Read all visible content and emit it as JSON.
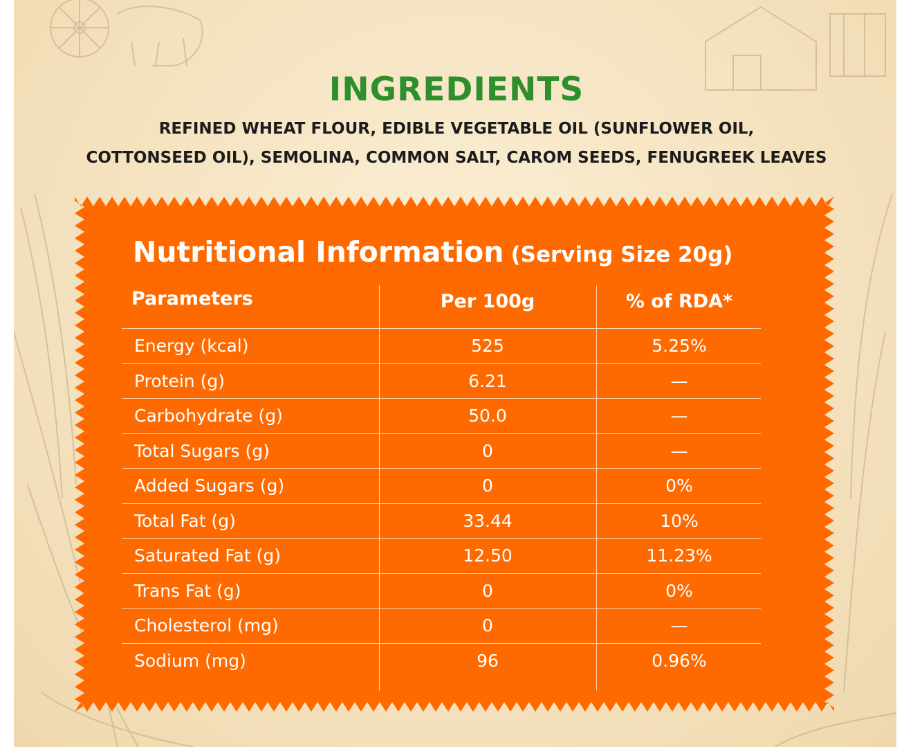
{
  "colors": {
    "title_green": "#2e8f2c",
    "panel_orange": "#ff6a00",
    "text_white": "#ffffff",
    "background": "#f7e8c9"
  },
  "ingredients": {
    "title": "INGREDIENTS",
    "line1": "REFINED WHEAT FLOUR, EDIBLE VEGETABLE OIL (SUNFLOWER OIL,",
    "line2": "COTTONSEED OIL), SEMOLINA, COMMON SALT, CAROM SEEDS,  FENUGREEK LEAVES"
  },
  "nutrition": {
    "title": "Nutritional Information",
    "serving": "(Serving Size 20g)",
    "headers": {
      "parameters": "Parameters",
      "per_100g": "Per 100g",
      "rda": "% of RDA*"
    },
    "rows": [
      {
        "param": "Energy (kcal)",
        "value": "525",
        "rda": "5.25%"
      },
      {
        "param": "Protein (g)",
        "value": "6.21",
        "rda": "—"
      },
      {
        "param": "Carbohydrate (g)",
        "value": "50.0",
        "rda": "—"
      },
      {
        "param": "Total Sugars (g)",
        "value": "0",
        "rda": "—"
      },
      {
        "param": "Added Sugars (g)",
        "value": "0",
        "rda": "0%"
      },
      {
        "param": "Total Fat (g)",
        "value": "33.44",
        "rda": "10%"
      },
      {
        "param": "Saturated Fat (g)",
        "value": "12.50",
        "rda": "11.23%"
      },
      {
        "param": "Trans Fat (g)",
        "value": "0",
        "rda": "0%"
      },
      {
        "param": "Cholesterol (mg)",
        "value": "0",
        "rda": "—"
      },
      {
        "param": "Sodium (mg)",
        "value": "96",
        "rda": "0.96%"
      }
    ]
  }
}
